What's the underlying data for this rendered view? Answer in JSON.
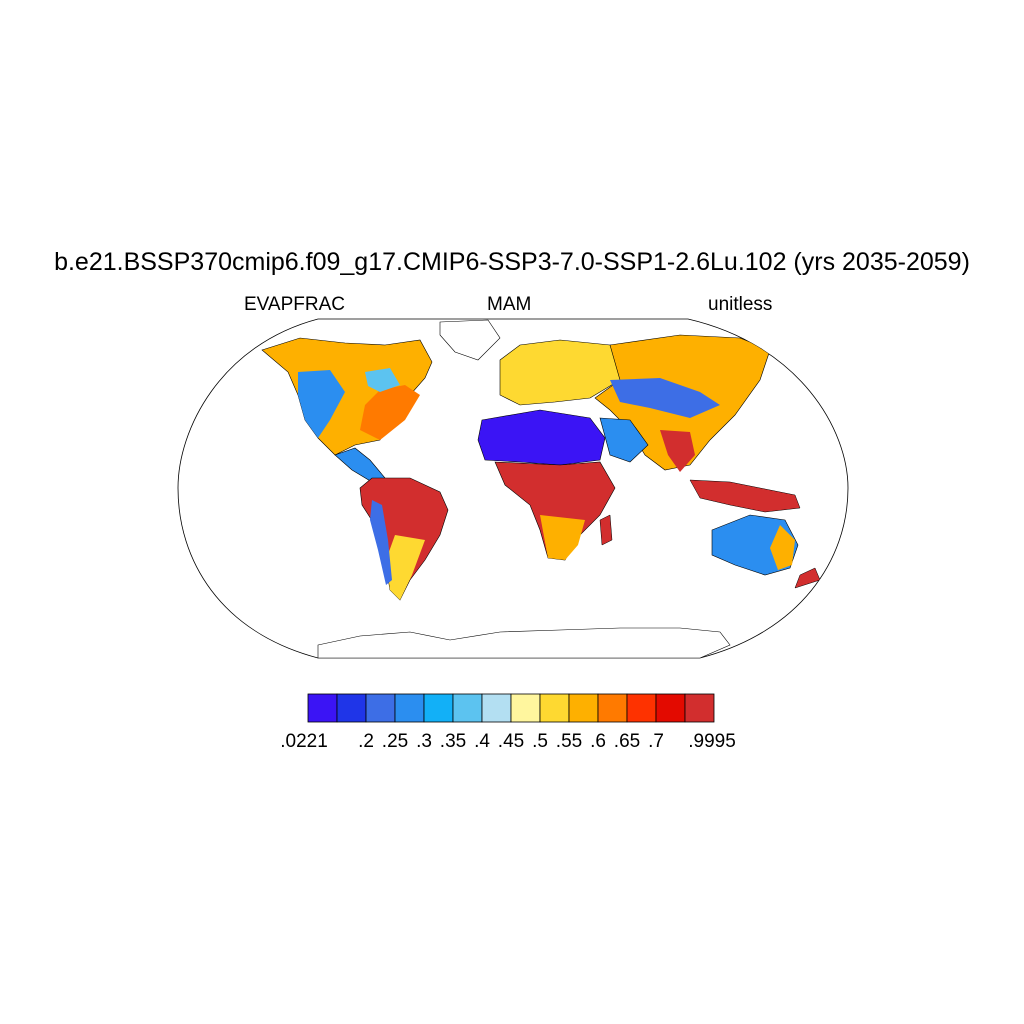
{
  "title": "b.e21.BSSP370cmip6.f09_g17.CMIP6-SSP3-7.0-SSP1-2.6Lu.102 (yrs 2035-2059)",
  "subtitles": {
    "left": "EVAPFRAC",
    "center": "MAM",
    "right": "unitless"
  },
  "colorbar": {
    "colors": [
      "#3b14f5",
      "#1f35e8",
      "#3d6ee6",
      "#2b8ef0",
      "#12b0f7",
      "#5cc3f0",
      "#b3dff2",
      "#fff69e",
      "#fed931",
      "#feb000",
      "#ff7a00",
      "#fe3200",
      "#e30a00",
      "#d22e2e"
    ],
    "labels": [
      ".0221",
      ".2",
      ".25",
      ".3",
      ".35",
      ".4",
      ".45",
      ".5",
      ".55",
      ".6",
      ".65",
      ".7",
      ".9995"
    ]
  },
  "map_regions": {
    "sahara": "#3b14f5",
    "amazon": "#d22e2e",
    "congo": "#d22e2e",
    "north_america": "#feb000",
    "eurasia": "#fed931",
    "australia": "#2b8ef0",
    "indonesia": "#d22e2e",
    "antarctica": "#ffffff"
  }
}
